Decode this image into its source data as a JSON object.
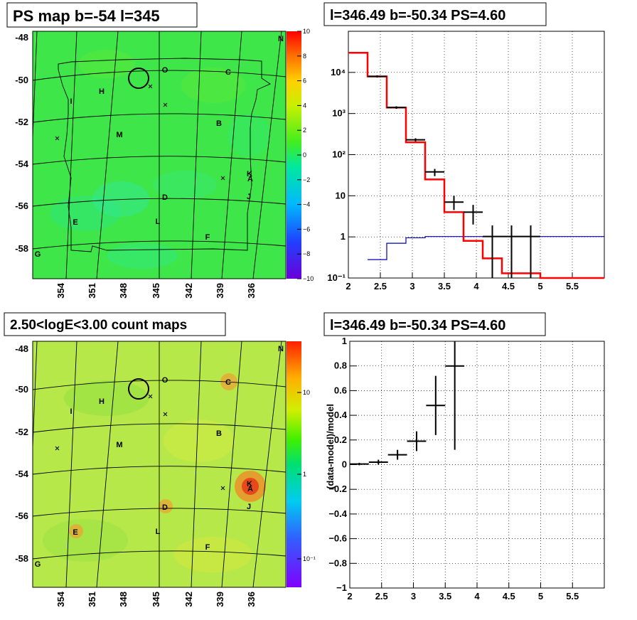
{
  "panels": {
    "tl_title": "PS map b=-54 l=345",
    "tr_title": "l=346.49 b=-50.34 PS=4.60",
    "bl_title": "2.50<logE<3.00 count maps",
    "br_title": "l=346.49 b=-50.34 PS=4.60",
    "br_ylabel": "(data-model)/model"
  },
  "map_axes": {
    "lat_ticks": [
      "-48",
      "-50",
      "-52",
      "-54",
      "-56",
      "-58"
    ],
    "lon_ticks": [
      "354",
      "351",
      "348",
      "345",
      "342",
      "339",
      "336"
    ]
  },
  "source_labels": [
    "N",
    "O",
    "C",
    "H",
    "I",
    "B",
    "M",
    "K",
    "A",
    "J",
    "D",
    "E",
    "L",
    "F",
    "G"
  ],
  "colorbar_top": [
    "10",
    "8",
    "6",
    "4",
    "2",
    "0",
    "−2",
    "−4",
    "−6",
    "−8",
    "−10"
  ],
  "colorbar_bottom": [
    "10",
    "1",
    "10⁻¹"
  ],
  "colors": {
    "model_line": "#ff0000",
    "flat_line": "#0000b0",
    "data": "#000000"
  },
  "chart_data": [
    {
      "type": "line",
      "title": "l=346.49 b=-50.34 PS=4.60",
      "xlabel": "",
      "ylabel": "",
      "xlim": [
        2,
        6
      ],
      "ylim": [
        0.1,
        100000
      ],
      "yscale": "log",
      "grid": true,
      "x_ticks": [
        "2",
        "2.5",
        "3",
        "3.5",
        "4",
        "4.5",
        "5",
        "5.5"
      ],
      "y_ticks": [
        "10⁻¹",
        "1",
        "10",
        "10²",
        "10³",
        "10⁴"
      ],
      "series": [
        {
          "role": "model_red_step",
          "x": [
            2,
            2.3,
            2.6,
            2.9,
            3.2,
            3.5,
            3.8,
            4.1,
            4.4,
            4.7,
            5,
            6
          ],
          "y": [
            30000,
            8000,
            1400,
            200,
            25,
            4,
            0.8,
            0.3,
            0.13,
            0.13,
            0.1,
            0.1
          ]
        },
        {
          "role": "flat_blue_step",
          "x": [
            2.3,
            2.6,
            2.9,
            3.2,
            6
          ],
          "y": [
            0.28,
            0.7,
            0.95,
            1.02,
            1.02
          ]
        },
        {
          "role": "data_points",
          "x": [
            2.45,
            2.75,
            3.05,
            3.35,
            3.65,
            3.95,
            4.25,
            4.55,
            4.85
          ],
          "y": [
            8000,
            1400,
            230,
            38,
            7,
            4,
            1.02,
            1.02,
            1.02
          ],
          "ylow": [
            7500,
            1300,
            210,
            30,
            4.5,
            2,
            0.1,
            0.1,
            0.1
          ],
          "yhigh": [
            8500,
            1500,
            250,
            45,
            10,
            6,
            1.9,
            1.9,
            1.9
          ],
          "xhalf": 0.15
        }
      ]
    },
    {
      "type": "scatter",
      "title": "l=346.49 b=-50.34 PS=4.60",
      "xlabel": "",
      "ylabel": "(data-model)/model",
      "xlim": [
        2,
        6
      ],
      "ylim": [
        -1,
        1
      ],
      "grid": true,
      "x_ticks": [
        "2",
        "2.5",
        "3",
        "3.5",
        "4",
        "4.5",
        "5",
        "5.5"
      ],
      "y_ticks": [
        "−1",
        "−0.8",
        "−0.6",
        "−0.4",
        "−0.2",
        "0",
        "0.2",
        "0.4",
        "0.6",
        "0.8",
        "1"
      ],
      "series": [
        {
          "role": "residuals",
          "x": [
            2.15,
            2.45,
            2.75,
            3.05,
            3.35,
            3.65
          ],
          "y": [
            0.005,
            0.02,
            0.08,
            0.19,
            0.48,
            0.8
          ],
          "err": [
            0.01,
            0.02,
            0.04,
            0.08,
            0.24,
            0.68
          ],
          "xhalf": 0.15
        }
      ]
    }
  ]
}
